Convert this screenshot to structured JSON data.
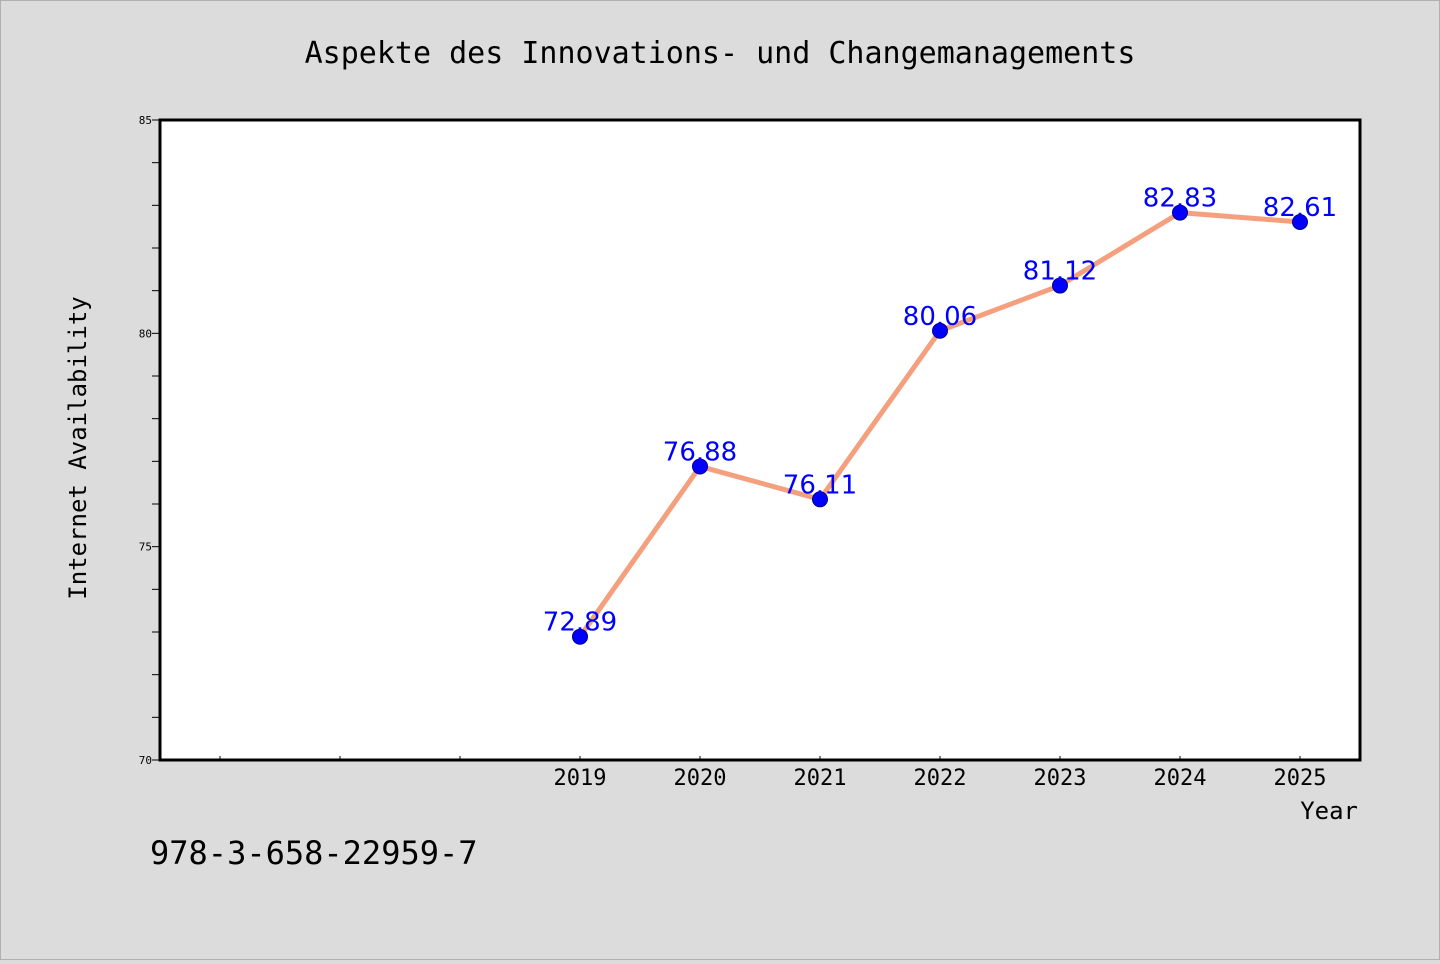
{
  "chart_data": {
    "type": "line",
    "title": "Aspekte des Innovations- und Changemanagements",
    "xlabel": "Year",
    "ylabel": "Internet Availability",
    "x": [
      "2019",
      "2020",
      "2021",
      "2022",
      "2023",
      "2024",
      "2025"
    ],
    "series": [
      {
        "values": [
          72.89,
          76.88,
          76.11,
          80.06,
          81.12,
          82.83,
          82.61
        ],
        "data_labels": [
          "72.89",
          "76.88",
          "76.11",
          "80.06",
          "81.12",
          "82.83",
          "82.61"
        ],
        "line_color": "#f4a07f",
        "marker_color": "#0000ff"
      }
    ],
    "ylim": [
      70,
      85
    ],
    "yticks": [
      "70",
      "75",
      "80",
      "85"
    ],
    "grid": false,
    "legend": "none"
  },
  "footer": {
    "isbn": "978-3-658-22959-7"
  },
  "colors": {
    "background": "#dcdcdc",
    "plot_background": "#ffffff",
    "label_color": "#0000ff"
  }
}
